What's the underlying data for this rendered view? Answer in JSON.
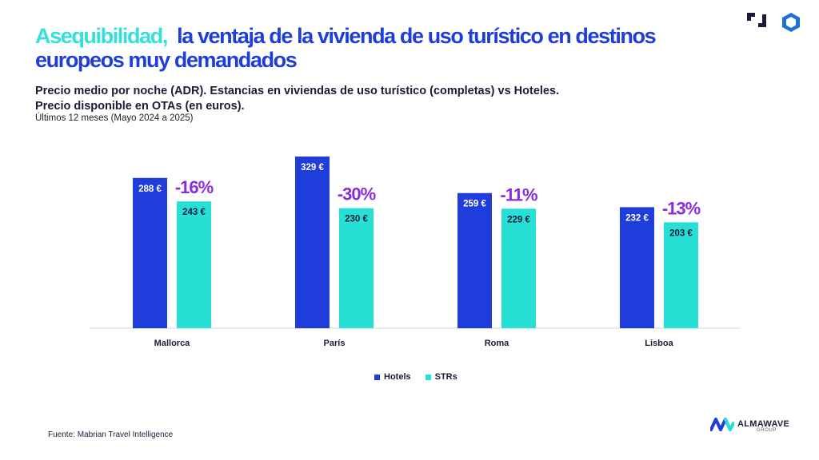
{
  "title": {
    "highlight": "Asequibilidad,",
    "rest": "la ventaja de la vivienda de uso turístico en destinos europeos muy demandados"
  },
  "subtitle": {
    "line1": "Precio medio por noche (ADR). Estancias en viviendas de uso turístico (completas) vs Hoteles.",
    "line2": "Precio disponible en OTAs (en euros)."
  },
  "note": "Últimos 12 meses (Mayo 2024 a 2025)",
  "source": "Fuente: Mabrian Travel Intelligence",
  "brand": {
    "name": "ALMAWAVE",
    "sub": "GROUP"
  },
  "colors": {
    "hotels": "#1f3ddb",
    "strs": "#26e0d6",
    "diff": "#8a2be2",
    "title": "#1f3ddb",
    "highlight": "#34e0d9"
  },
  "chart_data": {
    "type": "bar",
    "categories": [
      "Mallorca",
      "París",
      "Roma",
      "Lisboa"
    ],
    "series": [
      {
        "name": "Hotels",
        "values": [
          288,
          329,
          259,
          232
        ],
        "labels": [
          "288 €",
          "329 €",
          "259 €",
          "232 €"
        ]
      },
      {
        "name": "STRs",
        "values": [
          243,
          230,
          229,
          203
        ],
        "labels": [
          "243 €",
          "230 €",
          "229 €",
          "203 €"
        ]
      }
    ],
    "differences": [
      "-16%",
      "-30%",
      "-11%",
      "-13%"
    ],
    "ylim": [
      0,
      329
    ],
    "legend": "bottom-center"
  }
}
